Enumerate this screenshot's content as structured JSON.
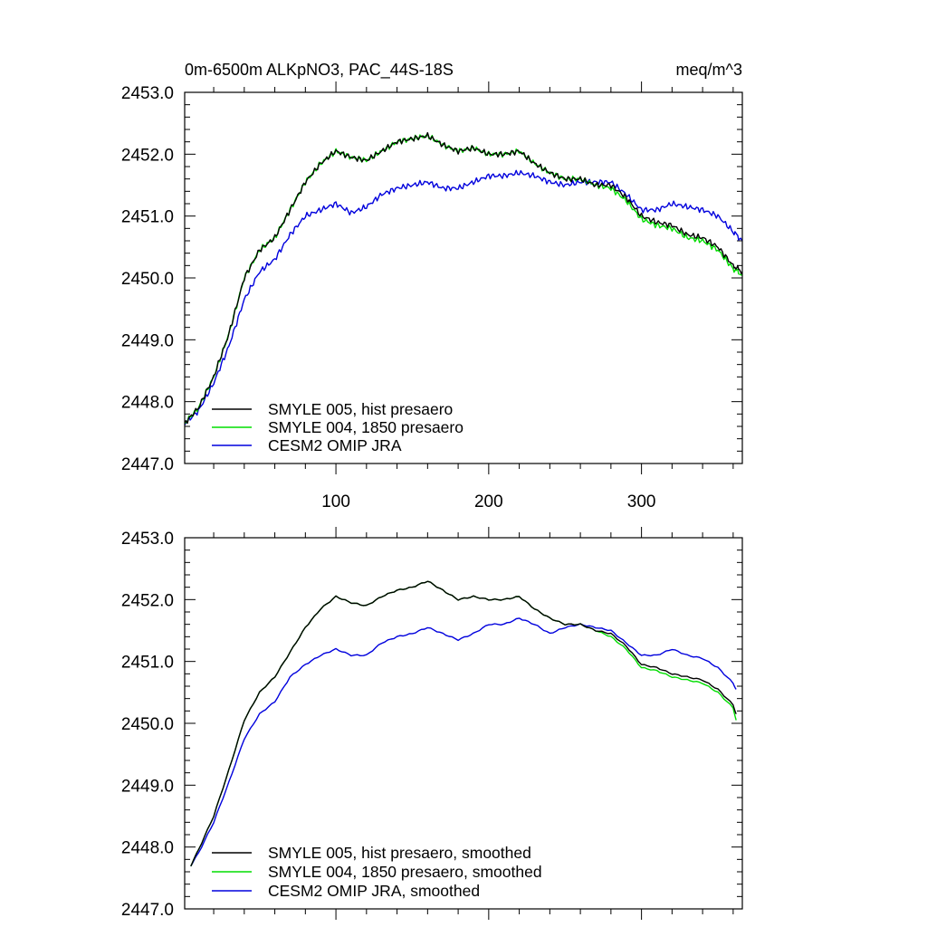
{
  "chart_data": [
    {
      "type": "line",
      "title": "0m-6500m ALKpNO3, PAC_44S-18S",
      "units": "meq/m^3",
      "xlim": [
        1,
        366
      ],
      "ylim": [
        2447.0,
        2453.0
      ],
      "x_ticks": [
        100,
        200,
        300
      ],
      "y_ticks": [
        "2447.0",
        "2448.0",
        "2449.0",
        "2450.0",
        "2451.0",
        "2452.0",
        "2453.0"
      ],
      "grid": false,
      "legend_position": "bottom-left",
      "series": [
        {
          "name": "SMYLE 005, hist presaero",
          "color": "#000000",
          "x": [
            1,
            10,
            20,
            30,
            40,
            50,
            60,
            70,
            80,
            90,
            100,
            110,
            120,
            130,
            140,
            150,
            160,
            170,
            180,
            190,
            200,
            210,
            220,
            230,
            240,
            250,
            260,
            270,
            280,
            290,
            300,
            310,
            320,
            330,
            340,
            350,
            360,
            366
          ],
          "y": [
            2447.65,
            2447.9,
            2448.4,
            2449.1,
            2450.0,
            2450.45,
            2450.65,
            2451.1,
            2451.55,
            2451.85,
            2452.05,
            2451.95,
            2451.9,
            2452.05,
            2452.2,
            2452.25,
            2452.3,
            2452.15,
            2452.05,
            2452.1,
            2452.0,
            2452.0,
            2452.05,
            2451.85,
            2451.7,
            2451.6,
            2451.6,
            2451.5,
            2451.5,
            2451.3,
            2451.0,
            2450.9,
            2450.85,
            2450.7,
            2450.65,
            2450.5,
            2450.2,
            2450.1
          ]
        },
        {
          "name": "SMYLE 004, 1850 presaero",
          "color": "#00dd00",
          "x": [
            1,
            10,
            20,
            30,
            40,
            50,
            60,
            70,
            80,
            90,
            100,
            110,
            120,
            130,
            140,
            150,
            160,
            170,
            180,
            190,
            200,
            210,
            220,
            230,
            240,
            250,
            260,
            270,
            280,
            290,
            300,
            310,
            320,
            330,
            340,
            350,
            360,
            366
          ],
          "y": [
            2447.65,
            2447.9,
            2448.4,
            2449.1,
            2450.0,
            2450.45,
            2450.65,
            2451.1,
            2451.55,
            2451.85,
            2452.05,
            2451.95,
            2451.9,
            2452.05,
            2452.2,
            2452.25,
            2452.3,
            2452.15,
            2452.05,
            2452.1,
            2452.0,
            2452.0,
            2452.05,
            2451.85,
            2451.7,
            2451.6,
            2451.6,
            2451.5,
            2451.45,
            2451.25,
            2450.95,
            2450.85,
            2450.8,
            2450.65,
            2450.6,
            2450.45,
            2450.15,
            2450.05
          ]
        },
        {
          "name": "CESM2 OMIP JRA",
          "color": "#0000dd",
          "x": [
            1,
            10,
            20,
            30,
            40,
            50,
            60,
            70,
            80,
            90,
            100,
            110,
            120,
            130,
            140,
            150,
            160,
            170,
            180,
            190,
            200,
            210,
            220,
            230,
            240,
            250,
            260,
            270,
            280,
            290,
            300,
            310,
            320,
            330,
            340,
            350,
            360,
            366
          ],
          "y": [
            2447.65,
            2447.85,
            2448.3,
            2448.9,
            2449.65,
            2450.1,
            2450.3,
            2450.7,
            2451.0,
            2451.1,
            2451.2,
            2451.05,
            2451.15,
            2451.35,
            2451.45,
            2451.5,
            2451.55,
            2451.45,
            2451.45,
            2451.55,
            2451.65,
            2451.65,
            2451.7,
            2451.65,
            2451.55,
            2451.5,
            2451.55,
            2451.55,
            2451.55,
            2451.35,
            2451.1,
            2451.1,
            2451.2,
            2451.15,
            2451.1,
            2451.0,
            2450.75,
            2450.6
          ]
        }
      ]
    },
    {
      "type": "line",
      "title": "",
      "xlim": [
        1,
        366
      ],
      "ylim": [
        2447.0,
        2453.0
      ],
      "y_ticks": [
        "2447.0",
        "2448.0",
        "2449.0",
        "2450.0",
        "2451.0",
        "2452.0",
        "2453.0"
      ],
      "grid": false,
      "legend_position": "bottom-left",
      "series": [
        {
          "name": "SMYLE 005, hist presaero, smoothed",
          "color": "#000000",
          "x": [
            5,
            10,
            20,
            30,
            40,
            50,
            60,
            70,
            80,
            90,
            100,
            110,
            120,
            130,
            140,
            150,
            160,
            170,
            180,
            190,
            200,
            210,
            220,
            230,
            240,
            250,
            260,
            270,
            280,
            290,
            300,
            310,
            320,
            330,
            340,
            350,
            360,
            362
          ],
          "y": [
            2447.7,
            2447.95,
            2448.5,
            2449.25,
            2450.05,
            2450.5,
            2450.75,
            2451.15,
            2451.55,
            2451.85,
            2452.05,
            2451.95,
            2451.9,
            2452.05,
            2452.15,
            2452.2,
            2452.3,
            2452.15,
            2452.0,
            2452.05,
            2452.0,
            2452.0,
            2452.05,
            2451.85,
            2451.7,
            2451.6,
            2451.6,
            2451.5,
            2451.45,
            2451.25,
            2450.95,
            2450.9,
            2450.8,
            2450.75,
            2450.7,
            2450.55,
            2450.3,
            2450.15
          ]
        },
        {
          "name": "SMYLE 004, 1850 presaero, smoothed",
          "color": "#00dd00",
          "x": [
            5,
            10,
            20,
            30,
            40,
            50,
            60,
            70,
            80,
            90,
            100,
            110,
            120,
            130,
            140,
            150,
            160,
            170,
            180,
            190,
            200,
            210,
            220,
            230,
            240,
            250,
            260,
            270,
            280,
            290,
            300,
            310,
            320,
            330,
            340,
            350,
            360,
            362
          ],
          "y": [
            2447.7,
            2447.95,
            2448.5,
            2449.25,
            2450.05,
            2450.5,
            2450.75,
            2451.15,
            2451.55,
            2451.85,
            2452.05,
            2451.95,
            2451.9,
            2452.05,
            2452.15,
            2452.2,
            2452.3,
            2452.15,
            2452.0,
            2452.05,
            2452.0,
            2452.0,
            2452.05,
            2451.85,
            2451.7,
            2451.6,
            2451.6,
            2451.5,
            2451.4,
            2451.2,
            2450.9,
            2450.85,
            2450.75,
            2450.7,
            2450.65,
            2450.5,
            2450.25,
            2450.05
          ]
        },
        {
          "name": "CESM2 OMIP JRA, smoothed",
          "color": "#0000dd",
          "x": [
            5,
            10,
            20,
            30,
            40,
            50,
            60,
            70,
            80,
            90,
            100,
            110,
            120,
            130,
            140,
            150,
            160,
            170,
            180,
            190,
            200,
            210,
            220,
            230,
            240,
            250,
            260,
            270,
            280,
            290,
            300,
            310,
            320,
            330,
            340,
            350,
            360,
            362
          ],
          "y": [
            2447.7,
            2447.9,
            2448.4,
            2449.05,
            2449.75,
            2450.15,
            2450.35,
            2450.75,
            2450.95,
            2451.1,
            2451.2,
            2451.1,
            2451.1,
            2451.3,
            2451.4,
            2451.45,
            2451.55,
            2451.45,
            2451.35,
            2451.45,
            2451.6,
            2451.6,
            2451.7,
            2451.6,
            2451.45,
            2451.55,
            2451.6,
            2451.55,
            2451.5,
            2451.3,
            2451.1,
            2451.1,
            2451.2,
            2451.1,
            2451.05,
            2450.9,
            2450.65,
            2450.55
          ]
        }
      ]
    }
  ]
}
